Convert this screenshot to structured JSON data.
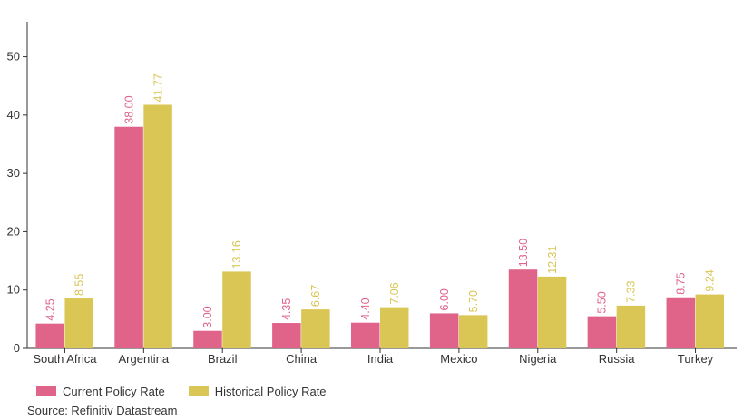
{
  "chart_data": {
    "type": "bar",
    "title": "",
    "xlabel": "",
    "ylabel": "",
    "ylim": [
      0,
      56
    ],
    "yticks": [
      0,
      10,
      20,
      30,
      40,
      50
    ],
    "categories": [
      "South Africa",
      "Argentina",
      "Brazil",
      "China",
      "India",
      "Mexico",
      "Nigeria",
      "Russia",
      "Turkey"
    ],
    "series": [
      {
        "name": "Current Policy Rate",
        "color": "#e0638a",
        "values": [
          4.25,
          38.0,
          3.0,
          4.35,
          4.4,
          6.0,
          13.5,
          5.5,
          8.75
        ],
        "labels": [
          "4.25",
          "38.00",
          "3.00",
          "4.35",
          "4.40",
          "6.00",
          "13.50",
          "5.50",
          "8.75"
        ]
      },
      {
        "name": "Historical Policy Rate",
        "color": "#d9c655",
        "values": [
          8.55,
          41.77,
          13.16,
          6.67,
          7.06,
          5.7,
          12.31,
          7.33,
          9.24
        ],
        "labels": [
          "8.55",
          "41.77",
          "13.16",
          "6.67",
          "7.06",
          "5.70",
          "12.31",
          "7.33",
          "9.24"
        ]
      }
    ],
    "legend_position": "bottom-left",
    "grid": false
  },
  "source": "Source: Refinitiv Datastream"
}
